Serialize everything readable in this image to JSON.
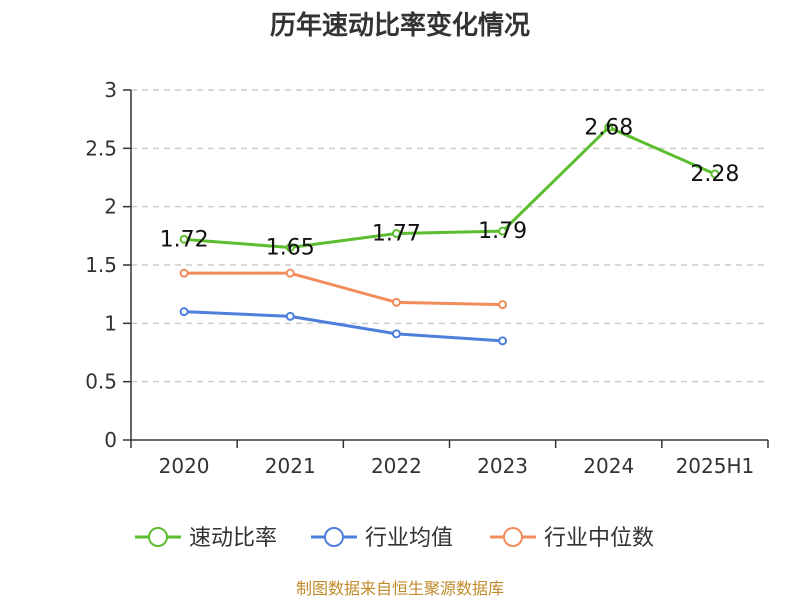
{
  "chart_data": {
    "type": "line",
    "title": "历年速动比率变化情况",
    "categories": [
      "2020",
      "2021",
      "2022",
      "2023",
      "2024",
      "2025H1"
    ],
    "ylim": [
      0,
      3
    ],
    "yticks": [
      "0",
      "0.5",
      "1",
      "1.5",
      "2",
      "2.5",
      "3"
    ],
    "grid": true,
    "legend_position": "bottom",
    "series": [
      {
        "name": "速动比率",
        "color": "#5cbd2f",
        "values": [
          1.72,
          1.65,
          1.77,
          1.79,
          2.68,
          2.28
        ],
        "labels": [
          "1.72",
          "1.65",
          "1.77",
          "1.79",
          "2.68",
          "2.28"
        ]
      },
      {
        "name": "行业均值",
        "color": "#4e7fdc",
        "values": [
          1.1,
          1.06,
          0.91,
          0.85,
          null,
          null
        ]
      },
      {
        "name": "行业中位数",
        "color": "#f28c5a",
        "values": [
          1.43,
          1.43,
          1.18,
          1.16,
          null,
          null
        ]
      }
    ],
    "source_note": "制图数据来自恒生聚源数据库",
    "source_color": "#c08a2a"
  }
}
